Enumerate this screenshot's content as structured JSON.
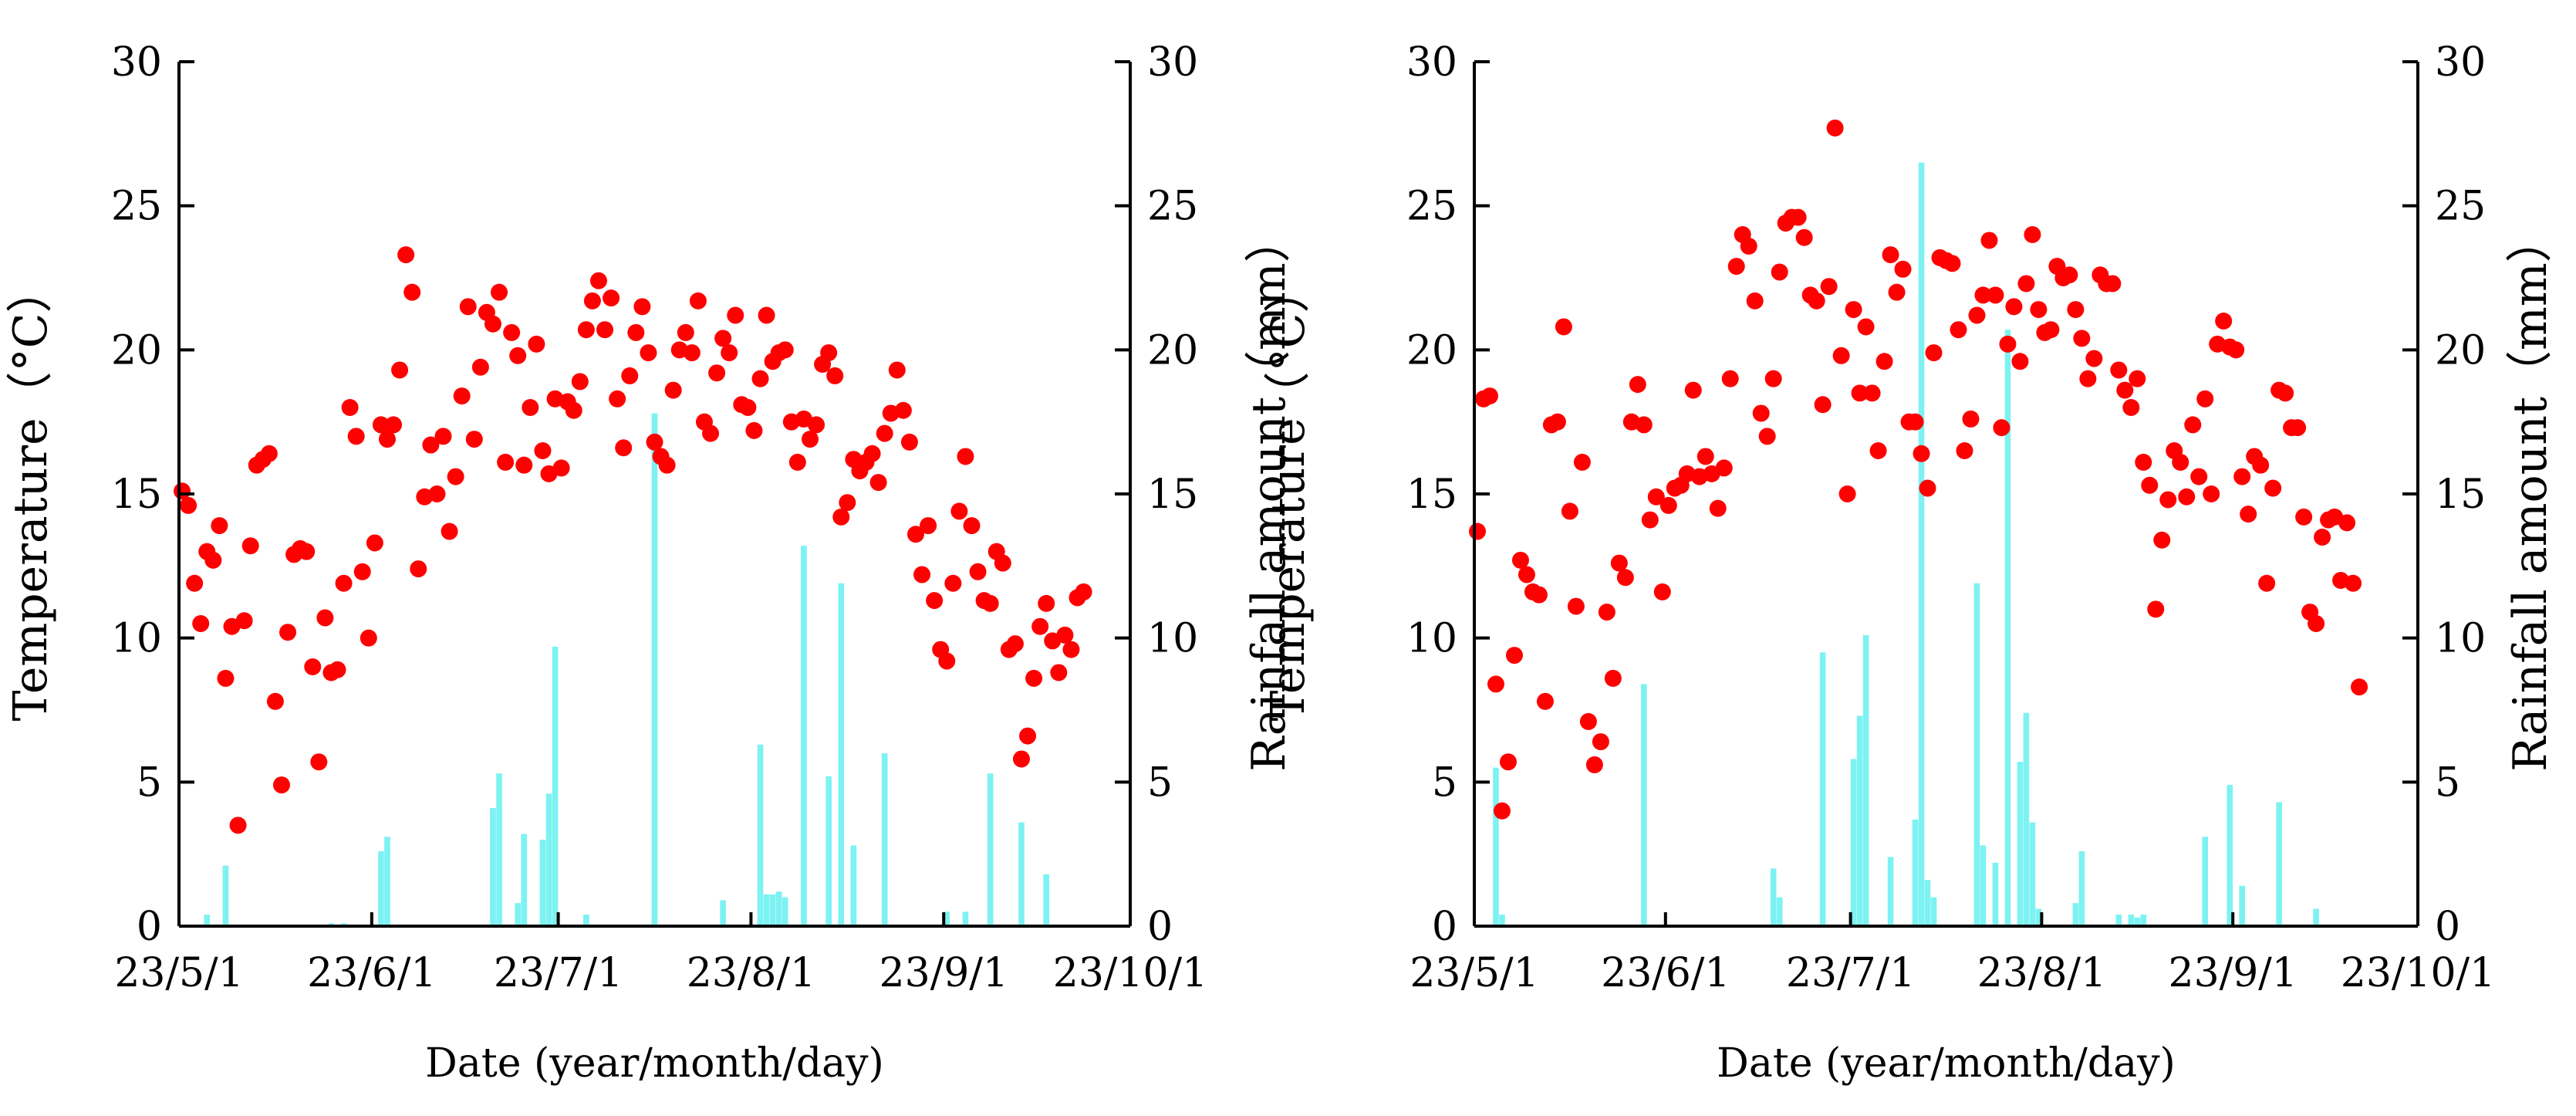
{
  "chart_data": [
    {
      "type": "bar+scatter",
      "panel": "left",
      "x_ticks": [
        "23/5/1",
        "23/6/1",
        "23/7/1",
        "23/8/1",
        "23/9/1",
        "23/10/1"
      ],
      "xlabel": "Date (year/month/day)",
      "ylabel_left": "Temperature（°C）",
      "ylabel_right": "Rainfall amount（mm）",
      "ylim_left": [
        0,
        30
      ],
      "ylim_right": [
        0,
        30
      ],
      "y_ticks": [
        "0",
        "5",
        "10",
        "15",
        "20",
        "25",
        "30"
      ],
      "days_total": 153,
      "temperature_color": "#ff0000",
      "rainfall_color": "#7df2f2",
      "temperature": [
        [
          0,
          15.1
        ],
        [
          1,
          14.6
        ],
        [
          2,
          11.9
        ],
        [
          3,
          10.5
        ],
        [
          4,
          13.0
        ],
        [
          5,
          12.7
        ],
        [
          6,
          13.9
        ],
        [
          7,
          8.6
        ],
        [
          8,
          10.4
        ],
        [
          9,
          3.5
        ],
        [
          10,
          10.6
        ],
        [
          11,
          13.2
        ],
        [
          12,
          16.0
        ],
        [
          13,
          16.2
        ],
        [
          14,
          16.4
        ],
        [
          15,
          7.8
        ],
        [
          16,
          4.9
        ],
        [
          17,
          10.2
        ],
        [
          18,
          12.9
        ],
        [
          19,
          13.1
        ],
        [
          20,
          13.0
        ],
        [
          21,
          9.0
        ],
        [
          22,
          5.7
        ],
        [
          23,
          10.7
        ],
        [
          24,
          8.8
        ],
        [
          25,
          8.9
        ],
        [
          26,
          11.9
        ],
        [
          27,
          18.0
        ],
        [
          28,
          17.0
        ],
        [
          29,
          12.3
        ],
        [
          30,
          10.0
        ],
        [
          31,
          13.3
        ],
        [
          32,
          17.4
        ],
        [
          33,
          16.9
        ],
        [
          34,
          17.4
        ],
        [
          35,
          19.3
        ],
        [
          36,
          23.3
        ],
        [
          37,
          22.0
        ],
        [
          38,
          12.4
        ],
        [
          39,
          14.9
        ],
        [
          40,
          16.7
        ],
        [
          41,
          15.0
        ],
        [
          42,
          17.0
        ],
        [
          43,
          13.7
        ],
        [
          44,
          15.6
        ],
        [
          45,
          18.4
        ],
        [
          46,
          21.5
        ],
        [
          47,
          16.9
        ],
        [
          48,
          19.4
        ],
        [
          49,
          21.3
        ],
        [
          50,
          20.9
        ],
        [
          51,
          22.0
        ],
        [
          52,
          16.1
        ],
        [
          53,
          20.6
        ],
        [
          54,
          19.8
        ],
        [
          55,
          16.0
        ],
        [
          56,
          18.0
        ],
        [
          57,
          20.2
        ],
        [
          58,
          16.5
        ],
        [
          59,
          15.7
        ],
        [
          60,
          18.3
        ],
        [
          61,
          15.9
        ],
        [
          62,
          18.2
        ],
        [
          63,
          17.9
        ],
        [
          64,
          18.9
        ],
        [
          65,
          20.7
        ],
        [
          66,
          21.7
        ],
        [
          67,
          22.4
        ],
        [
          68,
          20.7
        ],
        [
          69,
          21.8
        ],
        [
          70,
          18.3
        ],
        [
          71,
          16.6
        ],
        [
          72,
          19.1
        ],
        [
          73,
          20.6
        ],
        [
          74,
          21.5
        ],
        [
          75,
          19.9
        ],
        [
          76,
          16.8
        ],
        [
          77,
          16.3
        ],
        [
          78,
          16.0
        ],
        [
          79,
          18.6
        ],
        [
          80,
          20.0
        ],
        [
          81,
          20.6
        ],
        [
          82,
          19.9
        ],
        [
          83,
          21.7
        ],
        [
          84,
          17.5
        ],
        [
          85,
          17.1
        ],
        [
          86,
          19.2
        ],
        [
          87,
          20.4
        ],
        [
          88,
          19.9
        ],
        [
          89,
          21.2
        ],
        [
          90,
          18.1
        ],
        [
          91,
          18.0
        ],
        [
          92,
          17.2
        ],
        [
          93,
          19.0
        ],
        [
          94,
          21.2
        ],
        [
          95,
          19.6
        ],
        [
          96,
          19.9
        ],
        [
          97,
          20.0
        ],
        [
          98,
          17.5
        ],
        [
          99,
          16.1
        ],
        [
          100,
          17.6
        ],
        [
          101,
          16.9
        ],
        [
          102,
          17.4
        ],
        [
          103,
          19.5
        ],
        [
          104,
          19.9
        ],
        [
          105,
          19.1
        ],
        [
          106,
          14.2
        ],
        [
          107,
          14.7
        ],
        [
          108,
          16.2
        ],
        [
          109,
          15.8
        ],
        [
          110,
          16.1
        ],
        [
          111,
          16.4
        ],
        [
          112,
          15.4
        ],
        [
          113,
          17.1
        ],
        [
          114,
          17.8
        ],
        [
          115,
          19.3
        ],
        [
          116,
          17.9
        ],
        [
          117,
          16.8
        ],
        [
          118,
          13.6
        ],
        [
          119,
          12.2
        ],
        [
          120,
          13.9
        ],
        [
          121,
          11.3
        ],
        [
          122,
          9.6
        ],
        [
          123,
          9.2
        ],
        [
          124,
          11.9
        ],
        [
          125,
          14.4
        ],
        [
          126,
          16.3
        ],
        [
          127,
          13.9
        ],
        [
          128,
          12.3
        ],
        [
          129,
          11.3
        ],
        [
          130,
          11.2
        ],
        [
          131,
          13.0
        ],
        [
          132,
          12.6
        ],
        [
          133,
          9.6
        ],
        [
          134,
          9.8
        ],
        [
          135,
          5.8
        ],
        [
          136,
          6.6
        ],
        [
          137,
          8.6
        ],
        [
          138,
          10.4
        ],
        [
          139,
          11.2
        ],
        [
          140,
          9.9
        ],
        [
          141,
          8.8
        ],
        [
          142,
          10.1
        ],
        [
          143,
          9.6
        ],
        [
          144,
          11.4
        ],
        [
          145,
          11.6
        ]
      ],
      "rainfall": [
        [
          4,
          0.4
        ],
        [
          7,
          2.1
        ],
        [
          24,
          0.1
        ],
        [
          26,
          0.1
        ],
        [
          32,
          2.6
        ],
        [
          33,
          3.1
        ],
        [
          50,
          4.1
        ],
        [
          51,
          5.3
        ],
        [
          54,
          0.8
        ],
        [
          55,
          3.2
        ],
        [
          58,
          3.0
        ],
        [
          59,
          4.6
        ],
        [
          60,
          9.7
        ],
        [
          65,
          0.4
        ],
        [
          76,
          17.8
        ],
        [
          87,
          0.9
        ],
        [
          93,
          6.3
        ],
        [
          94,
          1.1
        ],
        [
          95,
          1.1
        ],
        [
          96,
          1.2
        ],
        [
          97,
          1.0
        ],
        [
          100,
          13.2
        ],
        [
          104,
          5.2
        ],
        [
          106,
          11.9
        ],
        [
          108,
          2.8
        ],
        [
          113,
          6.0
        ],
        [
          123,
          0.5
        ],
        [
          126,
          0.5
        ],
        [
          130,
          5.3
        ],
        [
          135,
          3.6
        ],
        [
          139,
          1.8
        ]
      ]
    },
    {
      "type": "bar+scatter",
      "panel": "right",
      "x_ticks": [
        "23/5/1",
        "23/6/1",
        "23/7/1",
        "23/8/1",
        "23/9/1",
        "23/10/1"
      ],
      "xlabel": "Date (year/month/day)",
      "ylabel_left": "Temperature（°C）",
      "ylabel_right": "Rainfall amount（mm）",
      "ylim_left": [
        0,
        30
      ],
      "ylim_right": [
        0,
        30
      ],
      "y_ticks": [
        "0",
        "5",
        "10",
        "15",
        "20",
        "25",
        "30"
      ],
      "days_total": 153,
      "temperature_color": "#ff0000",
      "rainfall_color": "#7df2f2",
      "temperature": [
        [
          0,
          13.7
        ],
        [
          1,
          18.3
        ],
        [
          2,
          18.4
        ],
        [
          3,
          8.4
        ],
        [
          4,
          4.0
        ],
        [
          5,
          5.7
        ],
        [
          6,
          9.4
        ],
        [
          7,
          12.7
        ],
        [
          8,
          12.2
        ],
        [
          9,
          11.6
        ],
        [
          10,
          11.5
        ],
        [
          11,
          7.8
        ],
        [
          12,
          17.4
        ],
        [
          13,
          17.5
        ],
        [
          14,
          20.8
        ],
        [
          15,
          14.4
        ],
        [
          16,
          11.1
        ],
        [
          17,
          16.1
        ],
        [
          18,
          7.1
        ],
        [
          19,
          5.6
        ],
        [
          20,
          6.4
        ],
        [
          21,
          10.9
        ],
        [
          22,
          8.6
        ],
        [
          23,
          12.6
        ],
        [
          24,
          12.1
        ],
        [
          25,
          17.5
        ],
        [
          26,
          18.8
        ],
        [
          27,
          17.4
        ],
        [
          28,
          14.1
        ],
        [
          29,
          14.9
        ],
        [
          30,
          11.6
        ],
        [
          31,
          14.6
        ],
        [
          32,
          15.2
        ],
        [
          33,
          15.3
        ],
        [
          34,
          15.7
        ],
        [
          35,
          18.6
        ],
        [
          36,
          15.6
        ],
        [
          37,
          16.3
        ],
        [
          38,
          15.7
        ],
        [
          39,
          14.5
        ],
        [
          40,
          15.9
        ],
        [
          41,
          19.0
        ],
        [
          42,
          22.9
        ],
        [
          43,
          24.0
        ],
        [
          44,
          23.6
        ],
        [
          45,
          21.7
        ],
        [
          46,
          17.8
        ],
        [
          47,
          17.0
        ],
        [
          48,
          19.0
        ],
        [
          49,
          22.7
        ],
        [
          50,
          24.4
        ],
        [
          51,
          24.6
        ],
        [
          52,
          24.6
        ],
        [
          53,
          23.9
        ],
        [
          54,
          21.9
        ],
        [
          55,
          21.7
        ],
        [
          56,
          18.1
        ],
        [
          57,
          22.2
        ],
        [
          58,
          27.7
        ],
        [
          59,
          19.8
        ],
        [
          60,
          15.0
        ],
        [
          61,
          21.4
        ],
        [
          62,
          18.5
        ],
        [
          63,
          20.8
        ],
        [
          64,
          18.5
        ],
        [
          65,
          16.5
        ],
        [
          66,
          19.6
        ],
        [
          67,
          23.3
        ],
        [
          68,
          22.0
        ],
        [
          69,
          22.8
        ],
        [
          70,
          17.5
        ],
        [
          71,
          17.5
        ],
        [
          72,
          16.4
        ],
        [
          73,
          15.2
        ],
        [
          74,
          19.9
        ],
        [
          75,
          23.2
        ],
        [
          76,
          23.1
        ],
        [
          77,
          23.0
        ],
        [
          78,
          20.7
        ],
        [
          79,
          16.5
        ],
        [
          80,
          17.6
        ],
        [
          81,
          21.2
        ],
        [
          82,
          21.9
        ],
        [
          83,
          23.8
        ],
        [
          84,
          21.9
        ],
        [
          85,
          17.3
        ],
        [
          86,
          20.2
        ],
        [
          87,
          21.5
        ],
        [
          88,
          19.6
        ],
        [
          89,
          22.3
        ],
        [
          90,
          24.0
        ],
        [
          91,
          21.4
        ],
        [
          92,
          20.6
        ],
        [
          93,
          20.7
        ],
        [
          94,
          22.9
        ],
        [
          95,
          22.5
        ],
        [
          96,
          22.6
        ],
        [
          97,
          21.4
        ],
        [
          98,
          20.4
        ],
        [
          99,
          19.0
        ],
        [
          100,
          19.7
        ],
        [
          101,
          22.6
        ],
        [
          102,
          22.3
        ],
        [
          103,
          22.3
        ],
        [
          104,
          19.3
        ],
        [
          105,
          18.6
        ],
        [
          106,
          18.0
        ],
        [
          107,
          19.0
        ],
        [
          108,
          16.1
        ],
        [
          109,
          15.3
        ],
        [
          110,
          11.0
        ],
        [
          111,
          13.4
        ],
        [
          112,
          14.8
        ],
        [
          113,
          16.5
        ],
        [
          114,
          16.1
        ],
        [
          115,
          14.9
        ],
        [
          116,
          17.4
        ],
        [
          117,
          15.6
        ],
        [
          118,
          18.3
        ],
        [
          119,
          15.0
        ],
        [
          120,
          20.2
        ],
        [
          121,
          21.0
        ],
        [
          122,
          20.1
        ],
        [
          123,
          20.0
        ],
        [
          124,
          15.6
        ],
        [
          125,
          14.3
        ],
        [
          126,
          16.3
        ],
        [
          127,
          16.0
        ],
        [
          128,
          11.9
        ],
        [
          129,
          15.2
        ],
        [
          130,
          18.6
        ],
        [
          131,
          18.5
        ],
        [
          132,
          17.3
        ],
        [
          133,
          17.3
        ],
        [
          134,
          14.2
        ],
        [
          135,
          10.9
        ],
        [
          136,
          10.5
        ],
        [
          137,
          13.5
        ],
        [
          138,
          14.1
        ],
        [
          139,
          14.2
        ],
        [
          140,
          12.0
        ],
        [
          141,
          14.0
        ],
        [
          142,
          11.9
        ],
        [
          143,
          8.3
        ]
      ],
      "rainfall": [
        [
          3,
          5.5
        ],
        [
          4,
          0.4
        ],
        [
          27,
          8.4
        ],
        [
          48,
          2.0
        ],
        [
          49,
          1.0
        ],
        [
          56,
          9.5
        ],
        [
          61,
          5.8
        ],
        [
          62,
          7.3
        ],
        [
          63,
          10.1
        ],
        [
          67,
          2.4
        ],
        [
          71,
          3.7
        ],
        [
          72,
          26.5
        ],
        [
          73,
          1.6
        ],
        [
          74,
          1.0
        ],
        [
          81,
          11.9
        ],
        [
          82,
          2.8
        ],
        [
          84,
          2.2
        ],
        [
          86,
          20.7
        ],
        [
          88,
          5.7
        ],
        [
          89,
          7.4
        ],
        [
          90,
          3.6
        ],
        [
          91,
          0.6
        ],
        [
          97,
          0.8
        ],
        [
          98,
          2.6
        ],
        [
          104,
          0.4
        ],
        [
          106,
          0.4
        ],
        [
          107,
          0.3
        ],
        [
          108,
          0.4
        ],
        [
          118,
          3.1
        ],
        [
          122,
          4.9
        ],
        [
          124,
          1.4
        ],
        [
          130,
          4.3
        ],
        [
          136,
          0.6
        ]
      ]
    }
  ]
}
